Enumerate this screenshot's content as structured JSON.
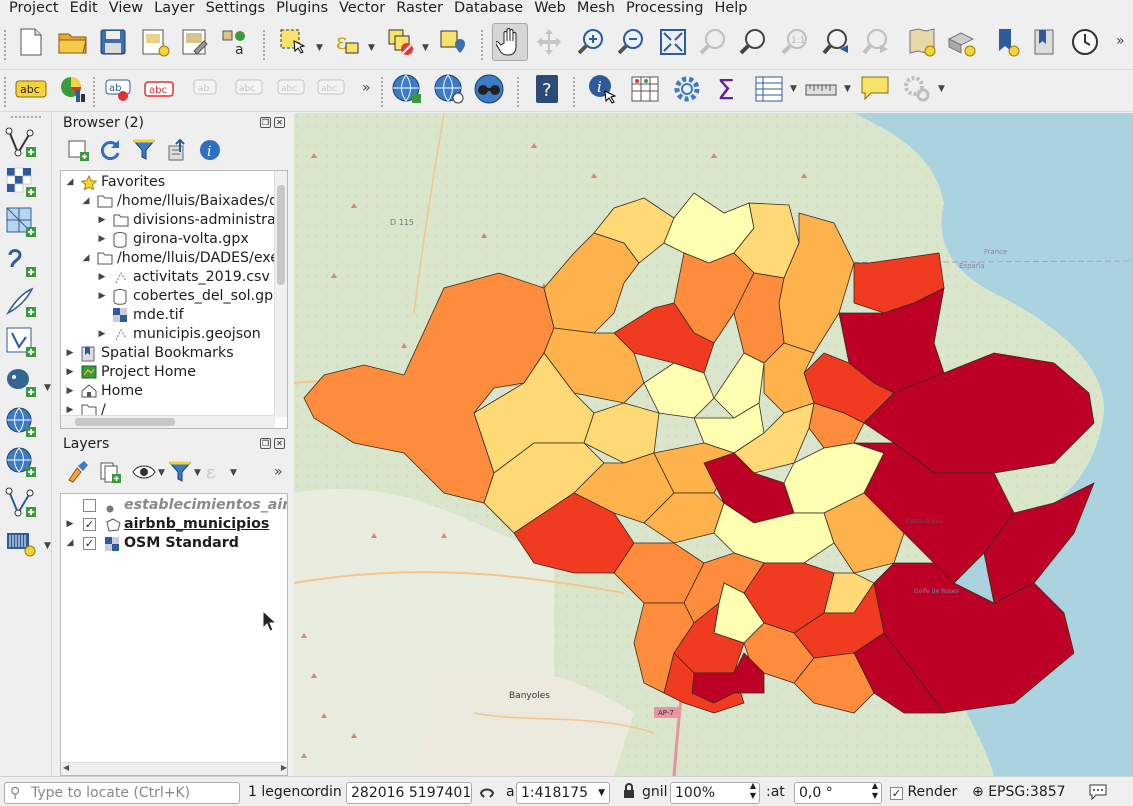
{
  "menubar": {
    "items": [
      "Project",
      "Edit",
      "View",
      "Layer",
      "Settings",
      "Plugins",
      "Vector",
      "Raster",
      "Database",
      "Web",
      "Mesh",
      "Processing",
      "Help"
    ]
  },
  "toolbar1": {
    "icons": [
      "new-project-icon",
      "open-project-icon",
      "save-project-icon",
      "new-print-layout-icon",
      "layout-manager-icon",
      "style-manager-icon",
      "select-features-icon",
      "select-by-expression-icon",
      "deselect-icon",
      "identify-select-icon",
      "pan-map-icon",
      "pan-to-selection-icon",
      "zoom-in-icon",
      "zoom-out-icon",
      "zoom-full-icon",
      "zoom-to-selection-icon",
      "zoom-to-layer-icon",
      "zoom-native-icon",
      "zoom-last-icon",
      "zoom-next-icon",
      "new-map-view-icon",
      "new-3d-view-icon",
      "new-bookmark-icon",
      "show-bookmarks-icon",
      "temporal-controller-icon"
    ]
  },
  "toolbar2": {
    "label_btn": "abc",
    "icons": [
      "labeling-icon",
      "diagram-icon",
      "pin-labels-icon",
      "highlight-labels-icon",
      "move-label-icon",
      "show-hide-labels-icon",
      "rotate-label-icon",
      "change-label-icon",
      "add-wms-icon",
      "add-wfs-icon",
      "metasearch-icon",
      "help-icon",
      "identify-icon",
      "attribute-table-icon",
      "settings-gear-icon",
      "statistics-sum-icon",
      "field-calculator-icon",
      "measure-icon",
      "annotation-icon",
      "processing-toolbox-icon"
    ]
  },
  "browser": {
    "title": "Browser (2)",
    "items": [
      {
        "label": "Favorites"
      },
      {
        "label": "/home/lluis/Baixades/d"
      },
      {
        "label": "divisions-administrat"
      },
      {
        "label": "girona-volta.gpx"
      },
      {
        "label": "/home/lluis/DADES/exe"
      },
      {
        "label": "activitats_2019.csv"
      },
      {
        "label": "cobertes_del_sol.gpk"
      },
      {
        "label": "mde.tif"
      },
      {
        "label": "municipis.geojson"
      },
      {
        "label": "Spatial Bookmarks"
      },
      {
        "label": "Project Home"
      },
      {
        "label": "Home"
      },
      {
        "label": "/"
      }
    ]
  },
  "layers": {
    "title": "Layers",
    "items": [
      {
        "label": "establecimientos_airbn",
        "checked": false
      },
      {
        "label": "airbnb_municipios",
        "checked": true
      },
      {
        "label": "OSM Standard",
        "checked": true
      }
    ]
  },
  "map": {
    "labels": {
      "d115": "D 115",
      "france": "France",
      "espana": "España",
      "banyoles": "Banyoles",
      "ap7": "AP-7",
      "golfe": "Golfe de Roses",
      "costa": "Costa Brava"
    },
    "colors": {
      "c1": "#ffffb2",
      "c2": "#fed976",
      "c3": "#feb24c",
      "c4": "#fd8d3c",
      "c5": "#f03b20",
      "c6": "#bd0026",
      "sea": "#aad3df"
    }
  },
  "statusbar": {
    "locate_placeholder": "Type to locate (Ctrl+K)",
    "legend": "1 legenc",
    "coord_label": "ordin",
    "coord_value": "282016 5197401",
    "scale_label": "a",
    "scale_value": "1:418175",
    "magnifier_label": "gnil",
    "magnifier_value": "100%",
    "rotation_label": ":at",
    "rotation_value": "0,0 °",
    "render_label": "Render",
    "crs": "EPSG:3857"
  }
}
